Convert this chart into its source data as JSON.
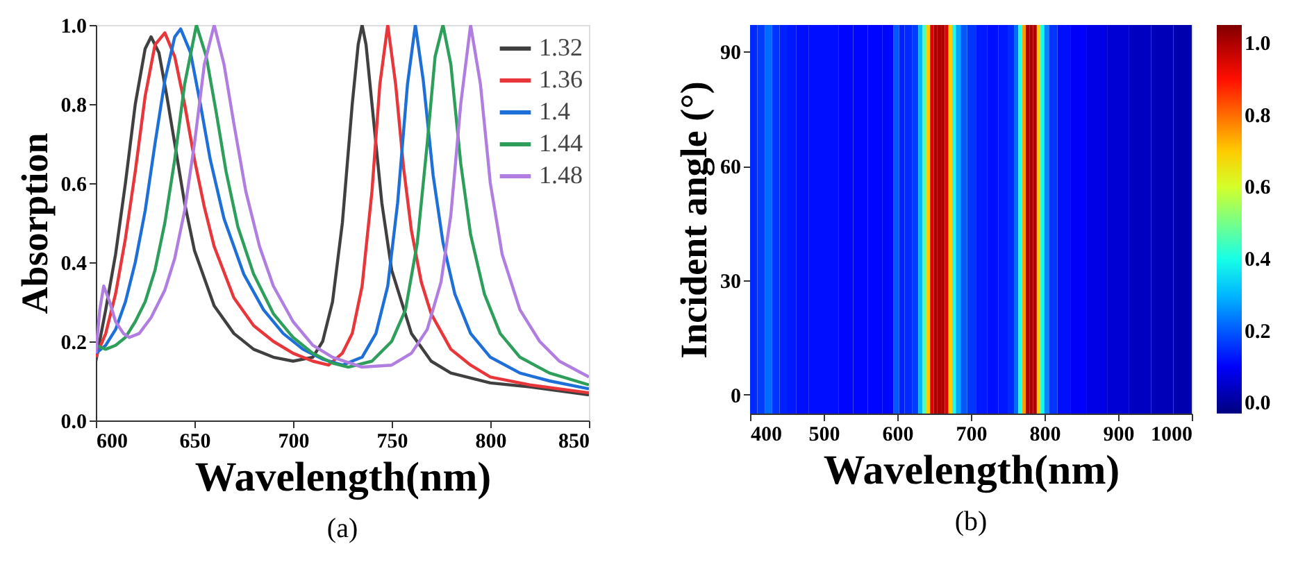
{
  "chart_data": [
    {
      "type": "line",
      "title": "(a)",
      "xlabel": "Wavelength(nm)",
      "ylabel": "Absorption",
      "xlim": [
        600,
        850
      ],
      "xticks": [
        600,
        650,
        700,
        750,
        800,
        850
      ],
      "ylim": [
        0,
        1
      ],
      "yticks": [
        {
          "value": 0,
          "label": "0.0"
        },
        0.2,
        0.4,
        0.6,
        0.8,
        {
          "value": 1,
          "label": "1.0"
        }
      ],
      "grid": false,
      "legend": "top right",
      "marker": "none",
      "line_style": "solid",
      "series": [
        {
          "name": "1.32",
          "color": "#404040",
          "x": [
            600,
            605,
            610,
            615,
            620,
            625,
            628,
            632,
            636,
            640,
            645,
            650,
            660,
            670,
            680,
            690,
            700,
            710,
            715,
            720,
            725,
            730,
            733,
            735,
            737,
            740,
            745,
            750,
            760,
            770,
            780,
            800,
            820,
            850
          ],
          "values": [
            0.15,
            0.28,
            0.42,
            0.6,
            0.8,
            0.94,
            0.97,
            0.93,
            0.82,
            0.7,
            0.55,
            0.43,
            0.29,
            0.22,
            0.18,
            0.16,
            0.15,
            0.16,
            0.2,
            0.3,
            0.5,
            0.8,
            0.95,
            1.0,
            0.95,
            0.8,
            0.55,
            0.38,
            0.22,
            0.15,
            0.12,
            0.095,
            0.085,
            0.065
          ]
        },
        {
          "name": "1.36",
          "color": "#e8363a",
          "x": [
            600,
            605,
            610,
            615,
            620,
            625,
            630,
            635,
            640,
            645,
            650,
            655,
            660,
            670,
            680,
            690,
            700,
            710,
            718,
            725,
            730,
            735,
            740,
            744,
            748,
            752,
            756,
            760,
            765,
            770,
            780,
            790,
            800,
            820,
            850
          ],
          "values": [
            0.16,
            0.22,
            0.32,
            0.46,
            0.63,
            0.82,
            0.95,
            0.98,
            0.92,
            0.8,
            0.66,
            0.54,
            0.44,
            0.31,
            0.24,
            0.2,
            0.17,
            0.15,
            0.14,
            0.17,
            0.22,
            0.34,
            0.58,
            0.85,
            1.0,
            0.85,
            0.64,
            0.48,
            0.35,
            0.27,
            0.18,
            0.14,
            0.11,
            0.09,
            0.07
          ]
        },
        {
          "name": "1.4",
          "color": "#1f6fd8",
          "x": [
            600,
            605,
            610,
            615,
            620,
            625,
            630,
            635,
            640,
            643,
            648,
            653,
            658,
            665,
            675,
            685,
            695,
            705,
            715,
            725,
            735,
            742,
            748,
            753,
            758,
            762,
            766,
            771,
            776,
            782,
            790,
            800,
            815,
            830,
            850
          ],
          "values": [
            0.17,
            0.19,
            0.23,
            0.3,
            0.4,
            0.53,
            0.7,
            0.86,
            0.97,
            0.99,
            0.93,
            0.8,
            0.66,
            0.51,
            0.37,
            0.28,
            0.22,
            0.18,
            0.155,
            0.14,
            0.16,
            0.22,
            0.34,
            0.55,
            0.85,
            1.0,
            0.86,
            0.62,
            0.45,
            0.32,
            0.22,
            0.16,
            0.12,
            0.1,
            0.08
          ]
        },
        {
          "name": "1.44",
          "color": "#2e9e5b",
          "x": [
            600,
            605,
            610,
            615,
            620,
            625,
            630,
            635,
            640,
            645,
            651,
            656,
            661,
            666,
            672,
            680,
            690,
            700,
            710,
            720,
            728,
            740,
            750,
            757,
            763,
            768,
            772,
            776,
            780,
            785,
            790,
            797,
            805,
            815,
            830,
            850
          ],
          "values": [
            0.19,
            0.18,
            0.19,
            0.21,
            0.25,
            0.3,
            0.38,
            0.5,
            0.66,
            0.85,
            1.0,
            0.92,
            0.78,
            0.63,
            0.49,
            0.37,
            0.27,
            0.21,
            0.17,
            0.145,
            0.135,
            0.15,
            0.2,
            0.28,
            0.45,
            0.7,
            0.92,
            1.0,
            0.9,
            0.65,
            0.47,
            0.32,
            0.22,
            0.16,
            0.12,
            0.09
          ]
        },
        {
          "name": "1.48",
          "color": "#b07ee0",
          "x": [
            600,
            602,
            604,
            607,
            610,
            614,
            617,
            622,
            628,
            635,
            640,
            645,
            650,
            655,
            660,
            665,
            670,
            676,
            683,
            690,
            700,
            710,
            720,
            735,
            750,
            760,
            768,
            775,
            780,
            785,
            790,
            795,
            800,
            806,
            815,
            825,
            835,
            850
          ],
          "values": [
            0.17,
            0.28,
            0.34,
            0.3,
            0.25,
            0.22,
            0.21,
            0.22,
            0.26,
            0.33,
            0.41,
            0.53,
            0.7,
            0.9,
            1.0,
            0.9,
            0.75,
            0.58,
            0.44,
            0.34,
            0.25,
            0.19,
            0.16,
            0.135,
            0.14,
            0.17,
            0.23,
            0.35,
            0.52,
            0.8,
            1.0,
            0.85,
            0.6,
            0.42,
            0.28,
            0.2,
            0.15,
            0.11
          ]
        }
      ]
    },
    {
      "type": "heatmap",
      "title": "(b)",
      "xlabel": "Wavelength(nm)",
      "ylabel": "Incident angle (°)",
      "xlim": [
        400,
        1000
      ],
      "xticks": [
        400,
        500,
        600,
        700,
        800,
        900,
        1000
      ],
      "ylim": [
        -5,
        97
      ],
      "yticks": [
        0,
        30,
        60,
        90
      ],
      "clim": [
        -0.03,
        1.05
      ],
      "cticks": [
        {
          "value": 0,
          "label": "0.0"
        },
        0.2,
        0.4,
        0.6,
        0.8,
        {
          "value": 1,
          "label": "1.0"
        }
      ],
      "grid": false,
      "x": [
        405,
        415,
        425,
        435,
        445,
        455,
        470,
        490,
        510,
        530,
        550,
        570,
        590,
        600,
        605,
        615,
        625,
        632,
        637,
        642,
        647,
        652,
        657,
        662,
        667,
        672,
        677,
        682,
        690,
        700,
        715,
        730,
        745,
        755,
        762,
        767,
        772,
        777,
        782,
        787,
        792,
        797,
        802,
        810,
        825,
        845,
        870,
        900,
        930,
        960,
        990
      ],
      "cells": [
        [
          0.15,
          0.17,
          0.22,
          0.16,
          0.14,
          0.13,
          0.12,
          0.12,
          0.12,
          0.11,
          0.11,
          0.11,
          0.11,
          0.2,
          0.14,
          0.15,
          0.17,
          0.3,
          0.45,
          0.7,
          0.95,
          1.0,
          1.0,
          1.0,
          0.95,
          0.7,
          0.4,
          0.28,
          0.2,
          0.16,
          0.13,
          0.12,
          0.13,
          0.15,
          0.22,
          0.4,
          0.75,
          1.0,
          1.0,
          1.0,
          0.7,
          0.4,
          0.25,
          0.16,
          0.12,
          0.1,
          0.08,
          0.06,
          0.04,
          0.03,
          0.02
        ]
      ]
    }
  ]
}
